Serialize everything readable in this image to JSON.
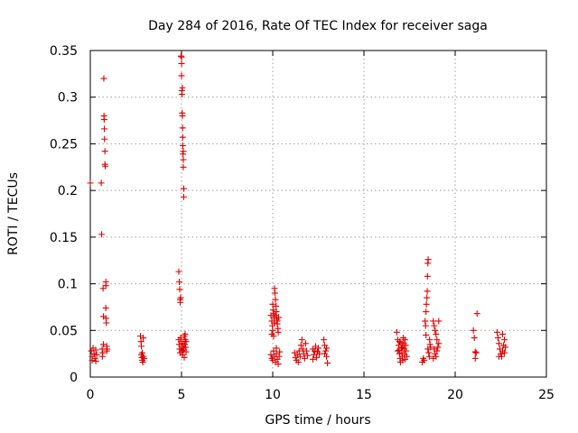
{
  "chart_data": {
    "type": "scatter",
    "title": "Day 284 of 2016, Rate Of TEC Index for receiver saga",
    "xlabel": "GPS time / hours",
    "ylabel": "ROTI / TECUs",
    "xlim": [
      0,
      25
    ],
    "ylim": [
      0,
      0.35
    ],
    "xticks": [
      0,
      5,
      10,
      15,
      20,
      25
    ],
    "xtick_labels": [
      "0",
      "5",
      "10",
      "15",
      "20",
      "25"
    ],
    "yticks": [
      0,
      0.05,
      0.1,
      0.15,
      0.2,
      0.25,
      0.3,
      0.35
    ],
    "ytick_labels": [
      "0",
      "0.05",
      "0.1",
      "0.15",
      "0.2",
      "0.25",
      "0.3",
      "0.35"
    ],
    "grid": true,
    "marker": "+",
    "color": "#e00000",
    "series": [
      {
        "name": "ROTI",
        "points": [
          [
            0.0,
            0.208
          ],
          [
            0.05,
            0.028
          ],
          [
            0.1,
            0.022
          ],
          [
            0.1,
            0.018
          ],
          [
            0.15,
            0.031
          ],
          [
            0.2,
            0.025
          ],
          [
            0.25,
            0.02
          ],
          [
            0.3,
            0.029
          ],
          [
            0.3,
            0.017
          ],
          [
            0.35,
            0.024
          ],
          [
            0.6,
            0.208
          ],
          [
            0.62,
            0.153
          ],
          [
            0.65,
            0.03
          ],
          [
            0.66,
            0.022
          ],
          [
            0.68,
            0.026
          ],
          [
            0.7,
            0.095
          ],
          [
            0.72,
            0.065
          ],
          [
            0.72,
            0.035
          ],
          [
            0.74,
            0.32
          ],
          [
            0.75,
            0.28
          ],
          [
            0.76,
            0.276
          ],
          [
            0.77,
            0.266
          ],
          [
            0.78,
            0.255
          ],
          [
            0.8,
            0.242
          ],
          [
            0.8,
            0.228
          ],
          [
            0.82,
            0.226
          ],
          [
            0.85,
            0.102
          ],
          [
            0.85,
            0.098
          ],
          [
            0.85,
            0.074
          ],
          [
            0.86,
            0.063
          ],
          [
            0.88,
            0.058
          ],
          [
            0.9,
            0.033
          ],
          [
            0.9,
            0.028
          ],
          [
            0.92,
            0.03
          ],
          [
            2.75,
            0.044
          ],
          [
            2.78,
            0.038
          ],
          [
            2.8,
            0.033
          ],
          [
            2.8,
            0.024
          ],
          [
            2.82,
            0.021
          ],
          [
            2.85,
            0.018
          ],
          [
            2.85,
            0.026
          ],
          [
            2.88,
            0.016
          ],
          [
            2.9,
            0.042
          ],
          [
            2.9,
            0.022
          ],
          [
            2.95,
            0.02
          ],
          [
            4.85,
            0.113
          ],
          [
            4.88,
            0.102
          ],
          [
            4.9,
            0.094
          ],
          [
            4.92,
            0.083
          ],
          [
            4.93,
            0.08
          ],
          [
            4.95,
            0.085
          ],
          [
            4.97,
            0.344
          ],
          [
            5.0,
            0.336
          ],
          [
            5.0,
            0.323
          ],
          [
            5.02,
            0.307
          ],
          [
            5.03,
            0.303
          ],
          [
            5.04,
            0.283
          ],
          [
            5.05,
            0.28
          ],
          [
            5.06,
            0.267
          ],
          [
            5.07,
            0.257
          ],
          [
            5.07,
            0.248
          ],
          [
            5.08,
            0.239
          ],
          [
            5.1,
            0.233
          ],
          [
            5.1,
            0.225
          ],
          [
            5.12,
            0.202
          ],
          [
            5.12,
            0.193
          ],
          [
            5.0,
            0.343
          ],
          [
            5.05,
            0.31
          ],
          [
            5.1,
            0.242
          ],
          [
            4.85,
            0.04
          ],
          [
            4.87,
            0.035
          ],
          [
            4.9,
            0.03
          ],
          [
            4.92,
            0.026
          ],
          [
            4.95,
            0.042
          ],
          [
            4.97,
            0.038
          ],
          [
            5.0,
            0.033
          ],
          [
            5.02,
            0.028
          ],
          [
            5.05,
            0.024
          ],
          [
            5.08,
            0.036
          ],
          [
            5.1,
            0.031
          ],
          [
            5.12,
            0.029
          ],
          [
            5.15,
            0.044
          ],
          [
            5.18,
            0.035
          ],
          [
            5.2,
            0.04
          ],
          [
            5.22,
            0.032
          ],
          [
            5.25,
            0.027
          ],
          [
            5.15,
            0.021
          ],
          [
            5.2,
            0.046
          ],
          [
            5.25,
            0.038
          ],
          [
            9.9,
            0.066
          ],
          [
            9.95,
            0.06
          ],
          [
            9.98,
            0.055
          ],
          [
            10.0,
            0.078
          ],
          [
            10.02,
            0.072
          ],
          [
            10.05,
            0.068
          ],
          [
            10.07,
            0.064
          ],
          [
            10.08,
            0.058
          ],
          [
            10.1,
            0.095
          ],
          [
            10.12,
            0.09
          ],
          [
            10.15,
            0.083
          ],
          [
            10.18,
            0.076
          ],
          [
            10.2,
            0.07
          ],
          [
            10.22,
            0.062
          ],
          [
            10.25,
            0.057
          ],
          [
            10.28,
            0.052
          ],
          [
            10.3,
            0.048
          ],
          [
            10.32,
            0.064
          ],
          [
            9.95,
            0.046
          ],
          [
            10.0,
            0.05
          ],
          [
            10.05,
            0.044
          ],
          [
            10.15,
            0.066
          ],
          [
            10.25,
            0.06
          ],
          [
            9.9,
            0.024
          ],
          [
            9.95,
            0.02
          ],
          [
            10.0,
            0.018
          ],
          [
            10.05,
            0.028
          ],
          [
            10.1,
            0.022
          ],
          [
            10.15,
            0.016
          ],
          [
            10.2,
            0.025
          ],
          [
            10.25,
            0.019
          ],
          [
            10.3,
            0.014
          ],
          [
            10.35,
            0.022
          ],
          [
            10.38,
            0.027
          ],
          [
            10.2,
            0.031
          ],
          [
            11.2,
            0.026
          ],
          [
            11.25,
            0.021
          ],
          [
            11.3,
            0.018
          ],
          [
            11.35,
            0.024
          ],
          [
            11.4,
            0.016
          ],
          [
            11.45,
            0.028
          ],
          [
            11.5,
            0.022
          ],
          [
            11.55,
            0.034
          ],
          [
            11.6,
            0.04
          ],
          [
            11.65,
            0.03
          ],
          [
            11.7,
            0.025
          ],
          [
            11.75,
            0.02
          ],
          [
            11.8,
            0.036
          ],
          [
            11.85,
            0.028
          ],
          [
            11.9,
            0.023
          ],
          [
            12.2,
            0.03
          ],
          [
            12.25,
            0.024
          ],
          [
            12.3,
            0.028
          ],
          [
            12.35,
            0.033
          ],
          [
            12.4,
            0.021
          ],
          [
            12.45,
            0.027
          ],
          [
            12.5,
            0.031
          ],
          [
            12.55,
            0.025
          ],
          [
            12.2,
            0.019
          ],
          [
            12.8,
            0.04
          ],
          [
            12.85,
            0.034
          ],
          [
            12.9,
            0.028
          ],
          [
            12.95,
            0.022
          ],
          [
            13.0,
            0.015
          ],
          [
            12.85,
            0.025
          ],
          [
            12.95,
            0.031
          ],
          [
            16.8,
            0.048
          ],
          [
            16.85,
            0.04
          ],
          [
            16.9,
            0.034
          ],
          [
            16.92,
            0.029
          ],
          [
            16.95,
            0.025
          ],
          [
            16.98,
            0.02
          ],
          [
            17.0,
            0.016
          ],
          [
            17.02,
            0.037
          ],
          [
            17.05,
            0.031
          ],
          [
            17.08,
            0.026
          ],
          [
            17.1,
            0.022
          ],
          [
            17.12,
            0.018
          ],
          [
            17.15,
            0.042
          ],
          [
            17.18,
            0.036
          ],
          [
            17.2,
            0.03
          ],
          [
            17.22,
            0.024
          ],
          [
            17.25,
            0.019
          ],
          [
            17.28,
            0.034
          ],
          [
            17.3,
            0.028
          ],
          [
            17.35,
            0.022
          ],
          [
            16.85,
            0.028
          ],
          [
            16.95,
            0.038
          ],
          [
            17.1,
            0.032
          ],
          [
            17.25,
            0.04
          ],
          [
            18.2,
            0.016
          ],
          [
            18.25,
            0.02
          ],
          [
            18.3,
            0.018
          ],
          [
            18.35,
            0.06
          ],
          [
            18.38,
            0.055
          ],
          [
            18.4,
            0.07
          ],
          [
            18.42,
            0.078
          ],
          [
            18.45,
            0.085
          ],
          [
            18.47,
            0.092
          ],
          [
            18.48,
            0.108
          ],
          [
            18.5,
            0.122
          ],
          [
            18.52,
            0.126
          ],
          [
            18.5,
            0.03
          ],
          [
            18.55,
            0.026
          ],
          [
            18.58,
            0.022
          ],
          [
            18.6,
            0.04
          ],
          [
            18.62,
            0.035
          ],
          [
            18.65,
            0.032
          ],
          [
            18.4,
            0.045
          ],
          [
            18.8,
            0.06
          ],
          [
            18.85,
            0.055
          ],
          [
            18.9,
            0.05
          ],
          [
            18.95,
            0.046
          ],
          [
            19.0,
            0.04
          ],
          [
            18.85,
            0.03
          ],
          [
            18.9,
            0.025
          ],
          [
            18.95,
            0.022
          ],
          [
            19.0,
            0.028
          ],
          [
            19.05,
            0.032
          ],
          [
            19.1,
            0.06
          ],
          [
            19.1,
            0.036
          ],
          [
            18.8,
            0.02
          ],
          [
            21.0,
            0.05
          ],
          [
            21.05,
            0.042
          ],
          [
            21.1,
            0.027
          ],
          [
            21.1,
            0.02
          ],
          [
            21.15,
            0.026
          ],
          [
            21.2,
            0.068
          ],
          [
            22.3,
            0.048
          ],
          [
            22.35,
            0.042
          ],
          [
            22.4,
            0.036
          ],
          [
            22.45,
            0.03
          ],
          [
            22.5,
            0.025
          ],
          [
            22.55,
            0.022
          ],
          [
            22.6,
            0.028
          ],
          [
            22.65,
            0.034
          ],
          [
            22.7,
            0.04
          ],
          [
            22.75,
            0.032
          ],
          [
            22.4,
            0.022
          ],
          [
            22.6,
            0.046
          ],
          [
            22.7,
            0.026
          ]
        ]
      }
    ]
  }
}
